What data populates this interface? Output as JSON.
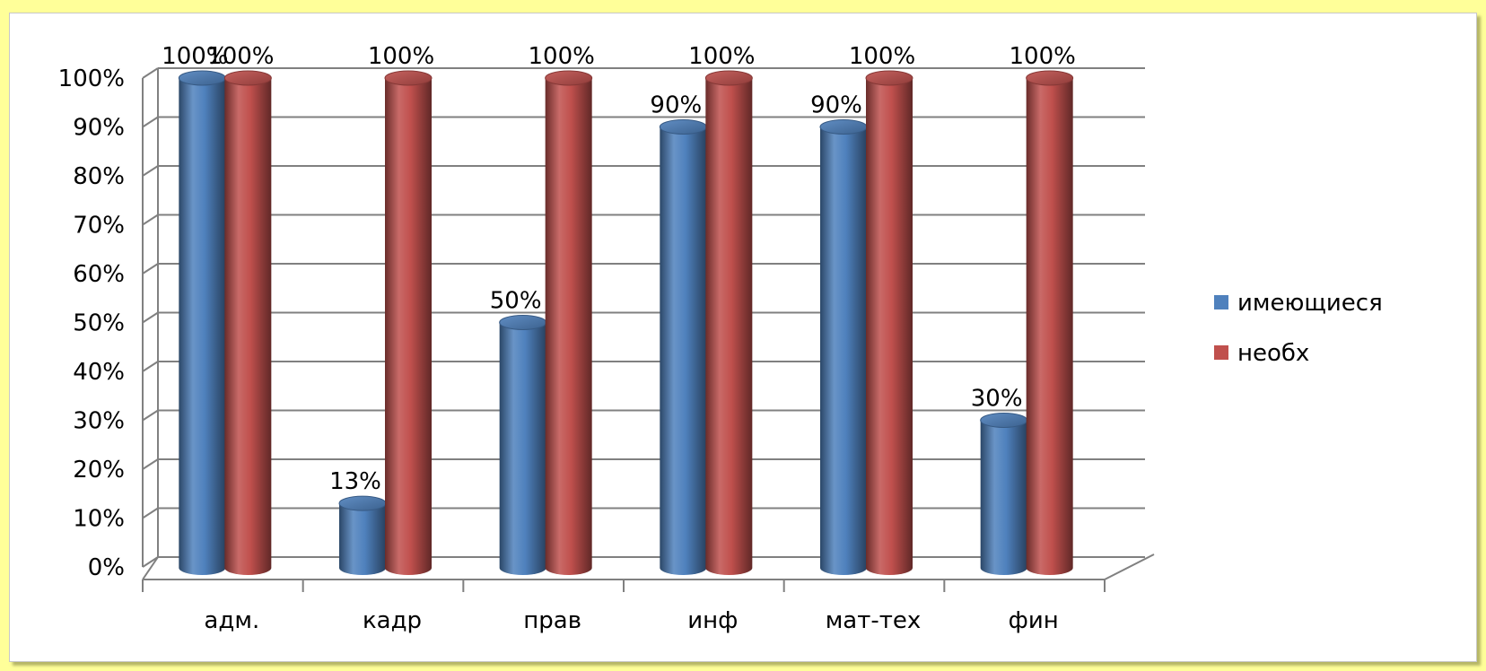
{
  "chart_data": {
    "type": "bar",
    "style": "3d-cylinder",
    "categories": [
      "адм.",
      "кадр",
      "прав",
      "инф",
      "мат-тех",
      "фин"
    ],
    "series": [
      {
        "name": "имеющиеся",
        "color": "#4f81bd",
        "values": [
          100,
          13,
          50,
          90,
          90,
          30
        ]
      },
      {
        "name": "необх",
        "color": "#c0504d",
        "values": [
          100,
          100,
          100,
          100,
          100,
          100
        ]
      }
    ],
    "value_format": "percent",
    "ylim": [
      0,
      100
    ],
    "yticks": [
      0,
      10,
      20,
      30,
      40,
      50,
      60,
      70,
      80,
      90,
      100
    ],
    "grid": true,
    "legend": "right",
    "data_labels": true
  }
}
